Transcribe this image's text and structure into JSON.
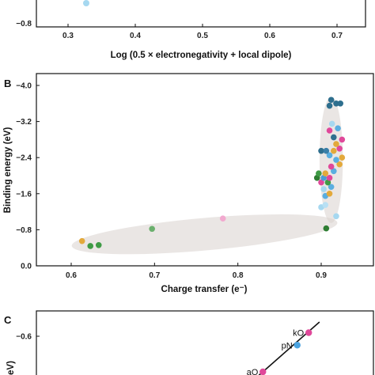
{
  "chart_data": [
    {
      "panel": "",
      "type": "scatter",
      "xlabel": "Log (0.5 × electronegativity + local dipole)",
      "ylabel": "",
      "xlim": [
        0.25,
        0.75
      ],
      "ylim": [
        -0.9,
        -0.5
      ],
      "x_ticks": [
        "0.3",
        "0.4",
        "0.5",
        "0.6",
        "0.7"
      ],
      "y_ticks": [
        "−0.8"
      ],
      "points": [
        {
          "x": 0.325,
          "y": -0.72,
          "color": "#a6d8f0"
        }
      ]
    },
    {
      "panel": "B",
      "type": "scatter",
      "xlabel": "Charge transfer (e⁻)",
      "ylabel": "Binding energy (eV)",
      "xlim": [
        0.58,
        0.95
      ],
      "ylim": [
        0.0,
        -4.2
      ],
      "x_ticks": [
        "0.6",
        "0.7",
        "0.8",
        "0.9"
      ],
      "y_ticks": [
        "0.0",
        "−0.8",
        "−1.6",
        "−2.4",
        "−3.2",
        "−4.0"
      ],
      "y_tick_values": [
        0.0,
        -0.8,
        -1.6,
        -2.4,
        -3.2,
        -4.0
      ],
      "x_tick_values": [
        0.6,
        0.7,
        0.8,
        0.9
      ],
      "ellipses": [
        {
          "cx": 0.76,
          "cy": -0.7,
          "rx": 0.16,
          "ry": 0.36,
          "angle": -5
        },
        {
          "cx": 0.912,
          "cy": -2.35,
          "rx": 0.014,
          "ry": 1.4,
          "angle": 0
        }
      ],
      "points": [
        {
          "x": 0.613,
          "y": -0.55,
          "color": "#e3a93b"
        },
        {
          "x": 0.623,
          "y": -0.44,
          "color": "#3f9b45"
        },
        {
          "x": 0.633,
          "y": -0.46,
          "color": "#3f9b45"
        },
        {
          "x": 0.697,
          "y": -0.82,
          "color": "#6bb06e"
        },
        {
          "x": 0.782,
          "y": -1.05,
          "color": "#f2a9cf"
        },
        {
          "x": 0.906,
          "y": -0.83,
          "color": "#2e7d32"
        },
        {
          "x": 0.9,
          "y": -1.3,
          "color": "#a6d8f0"
        },
        {
          "x": 0.905,
          "y": -1.35,
          "color": "#b8e0f4"
        },
        {
          "x": 0.918,
          "y": -1.1,
          "color": "#a6d8f0"
        },
        {
          "x": 0.905,
          "y": -1.55,
          "color": "#5aaee0"
        },
        {
          "x": 0.91,
          "y": -1.6,
          "color": "#e3a93b"
        },
        {
          "x": 0.903,
          "y": -1.7,
          "color": "#a6d8f0"
        },
        {
          "x": 0.912,
          "y": -1.75,
          "color": "#5aaee0"
        },
        {
          "x": 0.9,
          "y": -1.85,
          "color": "#e0489a"
        },
        {
          "x": 0.908,
          "y": -1.85,
          "color": "#3f9b45"
        },
        {
          "x": 0.895,
          "y": -1.95,
          "color": "#2e7d32"
        },
        {
          "x": 0.903,
          "y": -1.95,
          "color": "#4a9bd6"
        },
        {
          "x": 0.91,
          "y": -1.95,
          "color": "#e0489a"
        },
        {
          "x": 0.897,
          "y": -2.05,
          "color": "#3f9b45"
        },
        {
          "x": 0.905,
          "y": -2.05,
          "color": "#e3a93b"
        },
        {
          "x": 0.915,
          "y": -2.1,
          "color": "#5aaee0"
        },
        {
          "x": 0.922,
          "y": -2.25,
          "color": "#e3a93b"
        },
        {
          "x": 0.912,
          "y": -2.2,
          "color": "#e0489a"
        },
        {
          "x": 0.918,
          "y": -2.35,
          "color": "#5aaee0"
        },
        {
          "x": 0.925,
          "y": -2.4,
          "color": "#e3a93b"
        },
        {
          "x": 0.91,
          "y": -2.45,
          "color": "#5aaee0"
        },
        {
          "x": 0.915,
          "y": -2.55,
          "color": "#e3a93b"
        },
        {
          "x": 0.9,
          "y": -2.55,
          "color": "#2e6f8e"
        },
        {
          "x": 0.906,
          "y": -2.55,
          "color": "#3a7fa8"
        },
        {
          "x": 0.922,
          "y": -2.6,
          "color": "#e0489a"
        },
        {
          "x": 0.918,
          "y": -2.7,
          "color": "#e3a93b"
        },
        {
          "x": 0.925,
          "y": -2.8,
          "color": "#e0489a"
        },
        {
          "x": 0.915,
          "y": -2.85,
          "color": "#2e6f8e"
        },
        {
          "x": 0.91,
          "y": -3.0,
          "color": "#e0489a"
        },
        {
          "x": 0.92,
          "y": -3.05,
          "color": "#5aaee0"
        },
        {
          "x": 0.913,
          "y": -3.15,
          "color": "#a6d8f0"
        },
        {
          "x": 0.91,
          "y": -3.55,
          "color": "#2e6f8e"
        },
        {
          "x": 0.918,
          "y": -3.6,
          "color": "#2e6f8e"
        },
        {
          "x": 0.923,
          "y": -3.6,
          "color": "#2e6f8e"
        },
        {
          "x": 0.912,
          "y": -3.68,
          "color": "#2e6f8e"
        }
      ]
    },
    {
      "panel": "C",
      "type": "scatter",
      "xlabel": "",
      "ylabel": "eV)",
      "xlim": [
        0.0,
        1.0
      ],
      "ylim": [
        -0.4,
        -0.7
      ],
      "y_ticks": [
        "−0.6"
      ],
      "y_tick_values": [
        -0.6
      ],
      "fit_line": [
        [
          0.66,
          -0.38
        ],
        [
          0.84,
          -0.68
        ]
      ],
      "points": [
        {
          "x": 0.808,
          "y": -0.62,
          "label": "kO",
          "color": "#e0489a"
        },
        {
          "x": 0.774,
          "y": -0.55,
          "label": "pN",
          "color": "#4aa3e0"
        },
        {
          "x": 0.672,
          "y": -0.4,
          "label": "aO",
          "color": "#e0489a"
        }
      ]
    }
  ]
}
